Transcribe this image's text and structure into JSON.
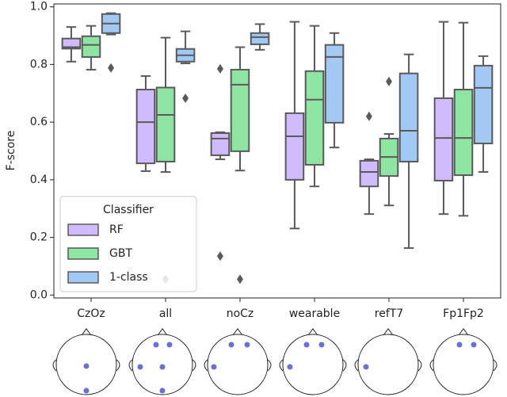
{
  "chart_data": {
    "type": "box",
    "ylabel": "F-score",
    "categories": [
      "CzOz",
      "all",
      "noCz",
      "wearable",
      "refT7",
      "Fp1Fp2"
    ],
    "ylim": [
      -0.01,
      1.01
    ],
    "yticks": [
      {
        "value": 0,
        "label": "0.0"
      },
      0.2,
      0.4,
      0.6,
      0.8,
      {
        "value": 1,
        "label": "1.0"
      }
    ],
    "legend": {
      "title": "Classifier",
      "position": "lower left"
    },
    "series": [
      {
        "name": "RF",
        "color": "#d0bbff",
        "values": [
          {
            "min": 0.81,
            "q1": 0.855,
            "median": 0.86,
            "q3": 0.89,
            "max": 0.93,
            "outliers": []
          },
          {
            "min": 0.43,
            "q1": 0.457,
            "median": 0.6,
            "q3": 0.713,
            "max": 0.76,
            "outliers": []
          },
          {
            "min": 0.471,
            "q1": 0.485,
            "median": 0.543,
            "q3": 0.562,
            "max": 0.565,
            "outliers": [
              0.785,
              0.135
            ]
          },
          {
            "min": 0.231,
            "q1": 0.4,
            "median": 0.551,
            "q3": 0.631,
            "max": 0.948,
            "outliers": []
          },
          {
            "min": 0.281,
            "q1": 0.377,
            "median": 0.427,
            "q3": 0.466,
            "max": 0.471,
            "outliers": [
              0.62
            ]
          },
          {
            "min": 0.281,
            "q1": 0.397,
            "median": 0.545,
            "q3": 0.683,
            "max": 0.948,
            "outliers": []
          }
        ]
      },
      {
        "name": "GBT",
        "color": "#8de5a1",
        "values": [
          {
            "min": 0.782,
            "q1": 0.826,
            "median": 0.868,
            "q3": 0.898,
            "max": 0.934,
            "outliers": []
          },
          {
            "min": 0.427,
            "q1": 0.463,
            "median": 0.625,
            "q3": 0.72,
            "max": 0.893,
            "outliers": [
              0.055
            ]
          },
          {
            "min": 0.432,
            "q1": 0.499,
            "median": 0.73,
            "q3": 0.782,
            "max": 0.86,
            "outliers": [
              0.055
            ]
          },
          {
            "min": 0.377,
            "q1": 0.452,
            "median": 0.678,
            "q3": 0.777,
            "max": 0.934,
            "outliers": []
          },
          {
            "min": 0.311,
            "q1": 0.413,
            "median": 0.479,
            "q3": 0.543,
            "max": 0.559,
            "outliers": [
              0.741
            ]
          },
          {
            "min": 0.275,
            "q1": 0.416,
            "median": 0.545,
            "q3": 0.713,
            "max": 0.945,
            "outliers": []
          }
        ]
      },
      {
        "name": "1-class",
        "color": "#a1c9f4",
        "values": [
          {
            "min": 0.904,
            "q1": 0.909,
            "median": 0.942,
            "q3": 0.975,
            "max": 0.978,
            "outliers": [
              0.788
            ]
          },
          {
            "min": 0.804,
            "q1": 0.81,
            "median": 0.832,
            "q3": 0.854,
            "max": 0.915,
            "outliers": [
              0.683
            ]
          },
          {
            "min": 0.851,
            "q1": 0.87,
            "median": 0.895,
            "q3": 0.909,
            "max": 0.94,
            "outliers": []
          },
          {
            "min": 0.512,
            "q1": 0.598,
            "median": 0.826,
            "q3": 0.868,
            "max": 0.909,
            "outliers": []
          },
          {
            "min": 0.163,
            "q1": 0.463,
            "median": 0.57,
            "q3": 0.769,
            "max": 0.835,
            "outliers": []
          },
          {
            "min": 0.427,
            "q1": 0.526,
            "median": 0.719,
            "q3": 0.796,
            "max": 0.829,
            "outliers": []
          }
        ]
      }
    ]
  }
}
